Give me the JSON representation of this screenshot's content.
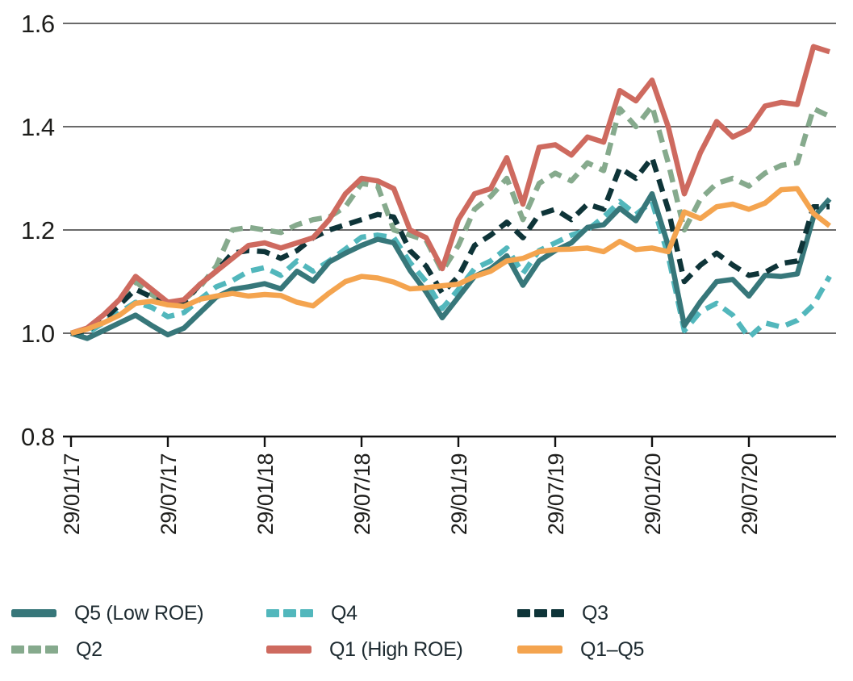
{
  "chart_data": {
    "type": "line",
    "title": "",
    "ylim": [
      0.8,
      1.6
    ],
    "y_tick_labels": [
      "1.6",
      "1.4",
      "1.2",
      "1.0",
      "0.8"
    ],
    "y_tick_values": [
      1.6,
      1.4,
      1.2,
      1.0,
      0.8
    ],
    "grid": "horizontal gridlines at 1.0, 1.2, 1.4, 1.6; baseline axis at 0.8",
    "legend_position": "bottom",
    "x_unit": "monthly samples, Jan 2017 - Dec 2020",
    "x_tick_labels": [
      "29/01/17",
      "29/07/17",
      "29/01/18",
      "29/07/18",
      "29/01/19",
      "29/07/19",
      "29/01/20",
      "29/07/20"
    ],
    "x_tick_month_indices": [
      0,
      6,
      12,
      18,
      24,
      30,
      36,
      42
    ],
    "series": [
      {
        "name": "Q5 (Low ROE)",
        "color": "#37777a",
        "style": "solid",
        "values": [
          1.0,
          0.99,
          1.005,
          1.02,
          1.035,
          1.015,
          0.997,
          1.01,
          1.04,
          1.07,
          1.085,
          1.09,
          1.096,
          1.086,
          1.12,
          1.101,
          1.138,
          1.155,
          1.17,
          1.182,
          1.175,
          1.122,
          1.08,
          1.03,
          1.07,
          1.11,
          1.125,
          1.15,
          1.093,
          1.14,
          1.16,
          1.175,
          1.205,
          1.21,
          1.242,
          1.218,
          1.27,
          1.17,
          1.015,
          1.061,
          1.1,
          1.104,
          1.072,
          1.112,
          1.11,
          1.115,
          1.225,
          1.26
        ]
      },
      {
        "name": "Q4",
        "color": "#52b7bc",
        "style": "dashed",
        "values": [
          1.0,
          1.0,
          1.02,
          1.04,
          1.06,
          1.05,
          1.032,
          1.04,
          1.066,
          1.09,
          1.102,
          1.12,
          1.127,
          1.112,
          1.14,
          1.12,
          1.14,
          1.163,
          1.186,
          1.19,
          1.185,
          1.137,
          1.1,
          1.048,
          1.085,
          1.125,
          1.14,
          1.165,
          1.116,
          1.16,
          1.175,
          1.19,
          1.2,
          1.225,
          1.255,
          1.23,
          1.255,
          1.15,
          1.005,
          1.042,
          1.058,
          1.035,
          0.992,
          1.02,
          1.012,
          1.025,
          1.055,
          1.11
        ]
      },
      {
        "name": "Q3",
        "color": "#0e3438",
        "style": "dashed",
        "values": [
          1.0,
          1.005,
          1.025,
          1.055,
          1.085,
          1.07,
          1.055,
          1.06,
          1.095,
          1.12,
          1.155,
          1.16,
          1.158,
          1.145,
          1.16,
          1.185,
          1.2,
          1.21,
          1.22,
          1.23,
          1.225,
          1.16,
          1.13,
          1.078,
          1.11,
          1.17,
          1.19,
          1.215,
          1.185,
          1.23,
          1.24,
          1.22,
          1.25,
          1.24,
          1.32,
          1.3,
          1.34,
          1.24,
          1.1,
          1.132,
          1.155,
          1.132,
          1.112,
          1.118,
          1.135,
          1.14,
          1.245,
          1.245
        ]
      },
      {
        "name": "Q2",
        "color": "#86aa8d",
        "style": "dashed",
        "values": [
          1.0,
          1.005,
          1.03,
          1.06,
          1.1,
          1.075,
          1.055,
          1.065,
          1.09,
          1.13,
          1.2,
          1.205,
          1.2,
          1.195,
          1.21,
          1.22,
          1.225,
          1.245,
          1.29,
          1.285,
          1.2,
          1.19,
          1.18,
          1.12,
          1.17,
          1.24,
          1.265,
          1.3,
          1.22,
          1.29,
          1.31,
          1.295,
          1.33,
          1.315,
          1.435,
          1.4,
          1.44,
          1.33,
          1.2,
          1.26,
          1.29,
          1.3,
          1.285,
          1.31,
          1.325,
          1.33,
          1.435,
          1.42
        ]
      },
      {
        "name": "Q1 (High ROE)",
        "color": "#ce6a5f",
        "style": "solid",
        "values": [
          1.0,
          1.01,
          1.035,
          1.065,
          1.11,
          1.085,
          1.06,
          1.065,
          1.095,
          1.12,
          1.145,
          1.17,
          1.175,
          1.165,
          1.175,
          1.185,
          1.22,
          1.27,
          1.3,
          1.295,
          1.28,
          1.2,
          1.185,
          1.125,
          1.22,
          1.27,
          1.28,
          1.34,
          1.25,
          1.36,
          1.365,
          1.345,
          1.38,
          1.37,
          1.47,
          1.45,
          1.49,
          1.4,
          1.27,
          1.35,
          1.41,
          1.38,
          1.395,
          1.44,
          1.447,
          1.443,
          1.555,
          1.545
        ]
      },
      {
        "name": "Q1–Q5",
        "color": "#f4a44f",
        "style": "solid",
        "values": [
          1.0,
          1.008,
          1.02,
          1.035,
          1.058,
          1.062,
          1.055,
          1.052,
          1.066,
          1.072,
          1.077,
          1.072,
          1.075,
          1.073,
          1.06,
          1.053,
          1.078,
          1.1,
          1.11,
          1.107,
          1.099,
          1.086,
          1.088,
          1.092,
          1.095,
          1.11,
          1.12,
          1.14,
          1.145,
          1.158,
          1.162,
          1.163,
          1.165,
          1.158,
          1.178,
          1.162,
          1.165,
          1.158,
          1.235,
          1.222,
          1.245,
          1.25,
          1.24,
          1.252,
          1.278,
          1.28,
          1.232,
          1.208
        ]
      }
    ],
    "draw_order": [
      3,
      1,
      0,
      2,
      4,
      5
    ],
    "legend_rows": [
      [
        "Q5 (Low ROE)",
        "Q4",
        "Q3"
      ],
      [
        "Q2",
        "Q1 (High ROE)",
        "Q1–Q5"
      ]
    ]
  },
  "style_tokens": {
    "axis_text_color": "#1d1d1b",
    "grid_color": "#111111",
    "background": "#ffffff"
  }
}
